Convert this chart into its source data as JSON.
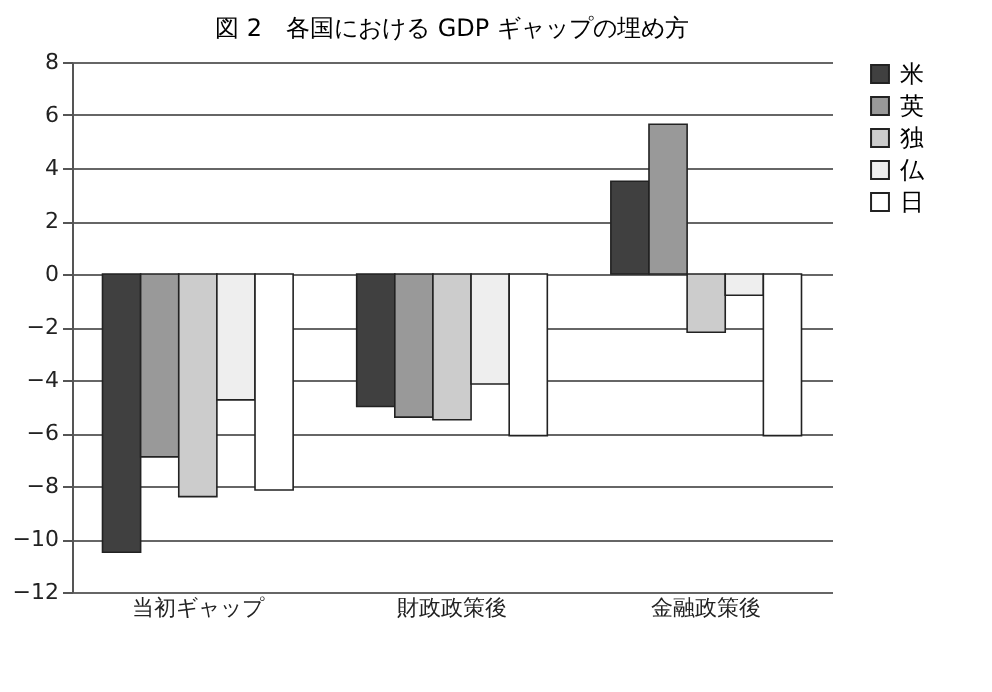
{
  "chart_data": {
    "type": "bar",
    "title": "図 2　各国における GDP ギャップの埋め方",
    "categories": [
      "当初ギャップ",
      "財政政策後",
      "金融政策後"
    ],
    "series": [
      {
        "name": "米",
        "color": "#404040",
        "values": [
          -10.5,
          -5.0,
          3.5
        ]
      },
      {
        "name": "英",
        "color": "#999999",
        "values": [
          -6.9,
          -5.4,
          5.65
        ]
      },
      {
        "name": "独",
        "color": "#cccccc",
        "values": [
          -8.4,
          -5.5,
          -2.2
        ]
      },
      {
        "name": "仏",
        "color": "#eeeeee",
        "values": [
          -4.75,
          -4.15,
          -0.8
        ]
      },
      {
        "name": "日",
        "color": "#ffffff",
        "values": [
          -8.15,
          -6.1,
          -6.1
        ]
      }
    ],
    "ylim": [
      -12,
      8
    ],
    "yticks": [
      -12,
      -10,
      -8,
      -6,
      -4,
      -2,
      0,
      2,
      4,
      6,
      8
    ],
    "grid": "y",
    "legend": "right"
  }
}
